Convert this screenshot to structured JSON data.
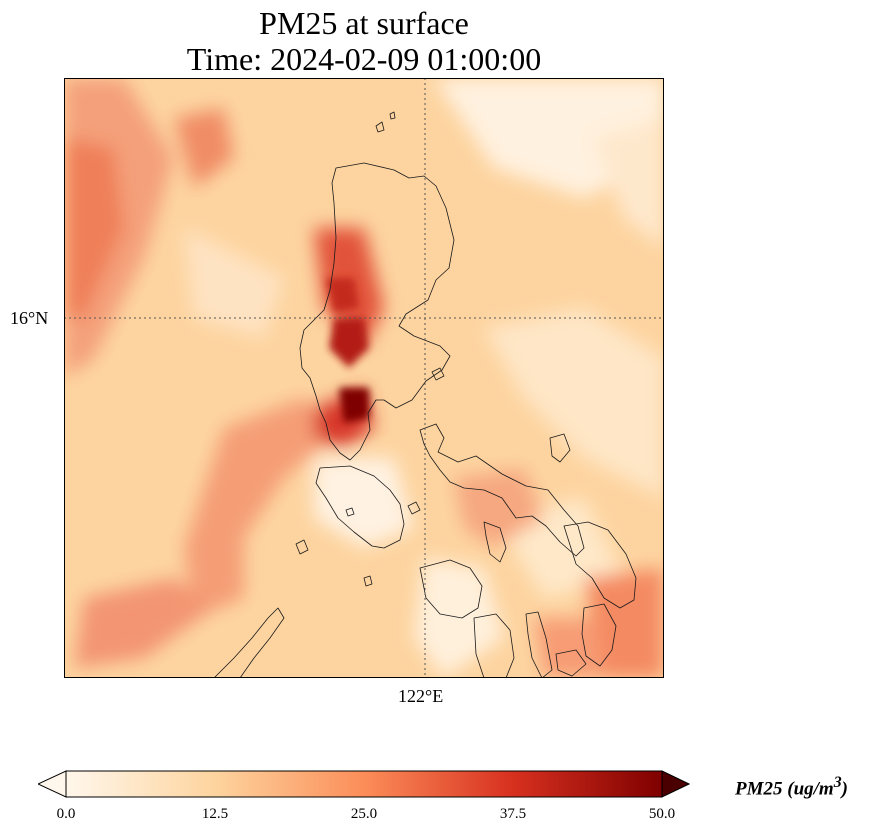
{
  "title": {
    "line1": "PM25 at surface",
    "line2": "Time: 2024-02-09 01:00:00"
  },
  "axes": {
    "lat_tick": "16°N",
    "lon_tick": "122°E"
  },
  "colorbar": {
    "ticks": [
      "0.0",
      "12.5",
      "25.0",
      "37.5",
      "50.0"
    ],
    "label_main": "PM25 (ug/m",
    "label_sup": "3",
    "label_end": ")",
    "colormap": [
      "#fff7ec",
      "#fdd49e",
      "#fc8d59",
      "#d7301f",
      "#7f0000"
    ]
  },
  "map": {
    "background_color": "#fdd4a0",
    "coastline_color": "#1a1a1a",
    "gridline_color": "#555555"
  }
}
